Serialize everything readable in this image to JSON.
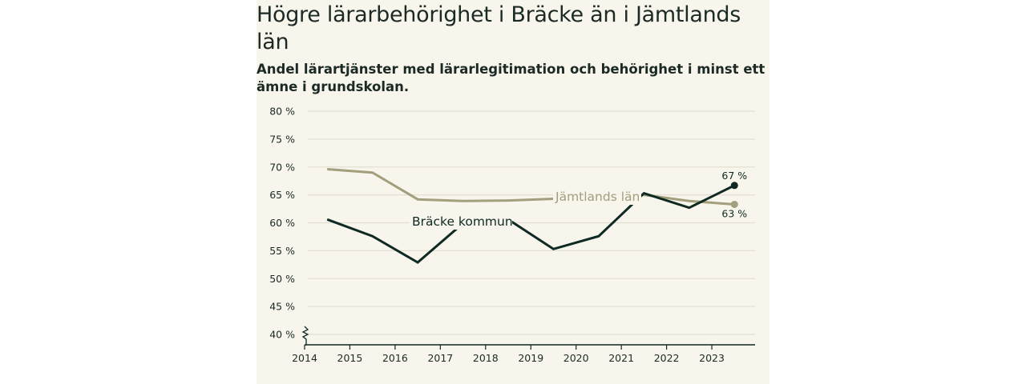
{
  "title": "Högre lärarbehörighet i Bräcke än i Jämtlands län",
  "subtitle": "Andel lärartjänster med lärarlegitimation och behörighet i minst ett ämne i grundskolan.",
  "colors": {
    "background": "#f7f5ec",
    "bracke": "#0f2a22",
    "jamtland": "#a39e7c",
    "grid": "#e3e0d3"
  },
  "chart_data": {
    "type": "line",
    "title": "Högre lärarbehörighet i Bräcke än i Jämtlands län",
    "x": [
      2014.5,
      2015.5,
      2016.5,
      2017.5,
      2018.5,
      2019.5,
      2020.5,
      2021.5,
      2022.5,
      2023.5
    ],
    "x_ticks": [
      "2014",
      "2015",
      "2016",
      "2017",
      "2018",
      "2019",
      "2020",
      "2021",
      "2022",
      "2023"
    ],
    "y_ticks": [
      "40 %",
      "45 %",
      "50 %",
      "55 %",
      "60 %",
      "65 %",
      "70 %",
      "75 %",
      "80 %"
    ],
    "ylim": [
      40,
      80
    ],
    "grid": true,
    "series": [
      {
        "name": "Jämtlands län",
        "values": [
          69.6,
          69.0,
          64.2,
          63.9,
          64.0,
          64.3,
          64.6,
          65.0,
          63.9,
          63.3
        ],
        "end_label": "63 %"
      },
      {
        "name": "Bräcke kommun",
        "values": [
          60.6,
          57.6,
          52.9,
          59.9,
          60.6,
          55.3,
          57.6,
          65.3,
          62.7,
          66.7
        ],
        "end_label": "67 %"
      }
    ]
  }
}
